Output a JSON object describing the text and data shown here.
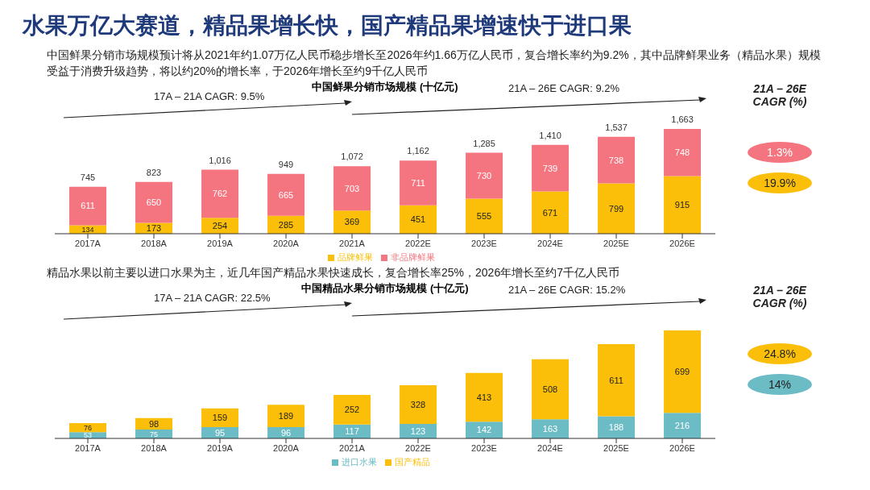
{
  "chart_data": [
    {
      "type": "other",
      "title": "水果万亿大赛道，精品果增长快，国产精品果增速快于进口果"
    },
    {
      "type": "bar",
      "subtitle": "中国鲜果分销市场规模预计将从2021年约1.07万亿人民币稳步增长至2026年约1.66万亿人民币，复合增长率约为9.2%，其中品牌鲜果业务（精品水果）规模受益于消费升级趋势，将以约20%的增长率，于2026年增长至约9千亿人民币",
      "title": "中国鲜果分销市场规模 (十亿元)",
      "categories": [
        "2017A",
        "2018A",
        "2019A",
        "2020A",
        "2021A",
        "2022E",
        "2023E",
        "2024E",
        "2025E",
        "2026E"
      ],
      "stacked": true,
      "tick_labels": "x",
      "data_labels": true,
      "legend": "bottom",
      "grid": false,
      "series": [
        {
          "name": "品牌鲜果",
          "color": "#fbbf0a",
          "values": [
            134,
            173,
            254,
            285,
            369,
            451,
            555,
            671,
            799,
            915
          ]
        },
        {
          "name": "非品牌鲜果",
          "color": "#f4757f",
          "values": [
            611,
            650,
            762,
            665,
            703,
            711,
            730,
            739,
            738,
            748
          ]
        }
      ],
      "totals": [
        "745",
        "823",
        "1,016",
        "949",
        "1,072",
        "1,162",
        "1,285",
        "1,410",
        "1,537",
        "1,663"
      ],
      "annotations": [
        "17A – 21A CAGR: 9.5%",
        "21A – 26E CAGR: 9.2%",
        "21A – 26E CAGR (%)",
        "1.3%",
        "19.9%"
      ]
    },
    {
      "type": "bar",
      "subtitle": "精品水果以前主要以进口水果为主，近几年国产精品水果快速成长，复合增长率25%，2026年增长至约7千亿人民币",
      "title": "中国精品水果分销市场规模 (十亿元)",
      "categories": [
        "2017A",
        "2018A",
        "2019A",
        "2020A",
        "2021A",
        "2022E",
        "2023E",
        "2024E",
        "2025E",
        "2026E"
      ],
      "stacked": true,
      "tick_labels": "x",
      "data_labels": true,
      "legend": "bottom",
      "grid": false,
      "series": [
        {
          "name": "进口水果",
          "color": "#6bbcc4",
          "values": [
            53,
            75,
            95,
            96,
            117,
            123,
            142,
            163,
            188,
            216
          ]
        },
        {
          "name": "国产精品",
          "color": "#fbbf0a",
          "values": [
            76,
            98,
            159,
            189,
            252,
            328,
            413,
            508,
            611,
            699
          ]
        }
      ],
      "annotations": [
        "17A – 21A CAGR: 22.5%",
        "21A – 26E CAGR: 15.2%",
        "21A – 26E CAGR (%)",
        "24.8%",
        "14%"
      ]
    }
  ]
}
